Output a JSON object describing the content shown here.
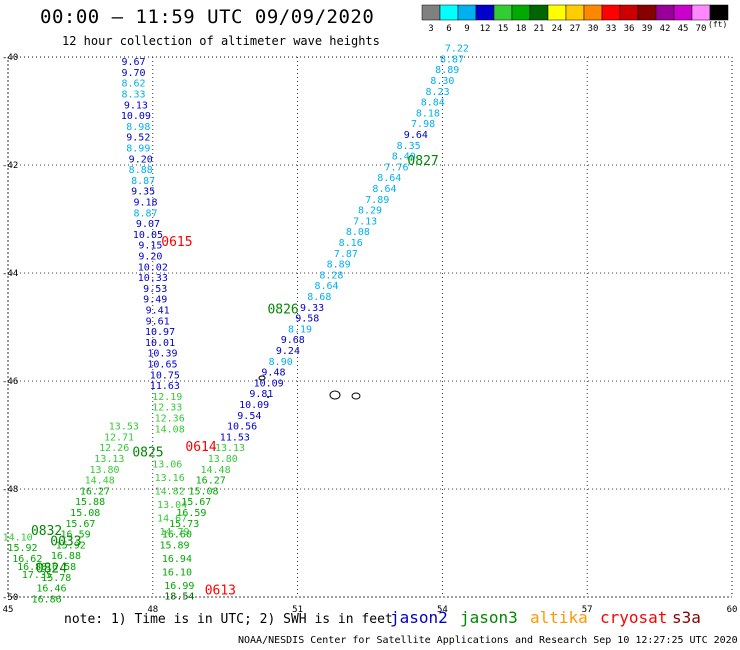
{
  "header": {
    "title": "00:00 – 11:59 UTC 09/09/2020",
    "subtitle": "12 hour collection of altimeter wave heights",
    "units": "(ft)"
  },
  "colorbar": [
    {
      "label": "3",
      "color": "#808080"
    },
    {
      "label": "6",
      "color": "#00ffff"
    },
    {
      "label": "9",
      "color": "#00b0f0"
    },
    {
      "label": "12",
      "color": "#0000cc"
    },
    {
      "label": "15",
      "color": "#33cc33"
    },
    {
      "label": "18",
      "color": "#00aa00"
    },
    {
      "label": "21",
      "color": "#006600"
    },
    {
      "label": "24",
      "color": "#ffff00"
    },
    {
      "label": "27",
      "color": "#ffcc00"
    },
    {
      "label": "30",
      "color": "#ff8800"
    },
    {
      "label": "33",
      "color": "#ff0000"
    },
    {
      "label": "36",
      "color": "#cc0000"
    },
    {
      "label": "39",
      "color": "#880000"
    },
    {
      "label": "42",
      "color": "#990099"
    },
    {
      "label": "45",
      "color": "#cc00cc"
    },
    {
      "label": "70",
      "color": "#ff88ff"
    },
    {
      "label": "",
      "color": "#000000"
    }
  ],
  "footer": {
    "note": "note: 1) Time is in UTC; 2) SWH is in feet",
    "credit": "NOAA/NESDIS Center for Satellite Applications and Research    Sep 10 12:27:25 UTC 2020",
    "legend": [
      {
        "label": "jason2",
        "color": "#0000cc"
      },
      {
        "label": "jason3",
        "color": "#008800"
      },
      {
        "label": "altika",
        "color": "#ff9900"
      },
      {
        "label": "cryosat",
        "color": "#ff0000"
      },
      {
        "label": "s3a",
        "color": "#880000"
      }
    ]
  },
  "chart_data": {
    "type": "scatter",
    "xlabel": "",
    "ylabel": "",
    "xlim": [
      45,
      60
    ],
    "ylim": [
      -50,
      -40
    ],
    "x_ticks": [
      "45",
      "48",
      "51",
      "54",
      "57",
      "60"
    ],
    "y_ticks": [
      "-40",
      "-42",
      "-44",
      "-46",
      "-48",
      "-50"
    ],
    "grid": true,
    "track_labels": [
      {
        "text": "0615",
        "x": 48.5,
        "y": -43.5,
        "color": "#ff0000"
      },
      {
        "text": "0614",
        "x": 49.0,
        "y": -47.3,
        "color": "#ff0000"
      },
      {
        "text": "0613",
        "x": 49.4,
        "y": -49.95,
        "color": "#ff0000"
      },
      {
        "text": "0827",
        "x": 53.6,
        "y": -42.0,
        "color": "#008800"
      },
      {
        "text": "0826",
        "x": 50.7,
        "y": -44.75,
        "color": "#008800"
      },
      {
        "text": "0825",
        "x": 47.9,
        "y": -47.4,
        "color": "#008800"
      },
      {
        "text": "0832",
        "x": 45.8,
        "y": -48.85,
        "color": "#008800"
      },
      {
        "text": "0033",
        "x": 46.2,
        "y": -49.05,
        "color": "#008800"
      },
      {
        "text": "0824",
        "x": 45.9,
        "y": -49.55,
        "color": "#008800"
      }
    ],
    "series": [
      {
        "satellite": "track 0615",
        "x": [
          47.6,
          47.6,
          47.6,
          47.6,
          47.65,
          47.65,
          47.7,
          47.7,
          47.7,
          47.75,
          47.75,
          47.8,
          47.8,
          47.85,
          47.85,
          47.9,
          47.9,
          47.95,
          47.95,
          48.0,
          48.0,
          48.05,
          48.05,
          48.1,
          48.1,
          48.15,
          48.15,
          48.2,
          48.2,
          48.25,
          48.25,
          48.3,
          48.3,
          48.35,
          48.35
        ],
        "y": [
          -40.15,
          -40.35,
          -40.55,
          -40.75,
          -40.95,
          -41.15,
          -41.35,
          -41.55,
          -41.75,
          -41.95,
          -42.15,
          -42.35,
          -42.55,
          -42.75,
          -42.95,
          -43.15,
          -43.35,
          -43.55,
          -43.75,
          -43.95,
          -44.15,
          -44.35,
          -44.55,
          -44.75,
          -44.95,
          -45.15,
          -45.35,
          -45.55,
          -45.75,
          -45.95,
          -46.15,
          -46.35,
          -46.55,
          -46.75,
          -46.95
        ],
        "values": [
          "9.67",
          "9.70",
          "8.62",
          "8.33",
          "9.13",
          "10.09",
          "8.98",
          "9.52",
          "8.99",
          "9.20",
          "8.88",
          "8.87",
          "9.35",
          "9.18",
          "8.87",
          "9.07",
          "10.05",
          "9.15",
          "9.20",
          "10.02",
          "10.33",
          "9.53",
          "9.49",
          "9.41",
          "9.61",
          "10.97",
          "10.01",
          "10.39",
          "10.65",
          "10.75",
          "11.63",
          "12.19",
          "12.33",
          "12.36",
          "14.08"
        ]
      },
      {
        "satellite": "track 0827",
        "x": [
          54.3,
          54.2,
          54.1,
          54.0,
          53.9,
          53.8,
          53.7,
          53.6,
          53.45,
          53.3,
          53.2,
          53.05,
          52.9,
          52.8,
          52.65,
          52.5,
          52.4,
          52.25,
          52.1,
          52.0,
          51.85,
          51.7,
          51.6,
          51.45,
          51.3,
          51.2,
          51.05,
          50.9,
          50.8,
          50.65,
          50.5,
          50.4,
          50.25,
          50.1,
          50.0,
          49.85,
          49.7,
          49.6,
          49.45,
          49.3,
          49.2,
          49.05,
          48.9,
          48.8,
          48.65,
          48.5
        ],
        "y": [
          -39.9,
          -40.1,
          -40.3,
          -40.5,
          -40.7,
          -40.9,
          -41.1,
          -41.3,
          -41.5,
          -41.7,
          -41.9,
          -42.1,
          -42.3,
          -42.5,
          -42.7,
          -42.9,
          -43.1,
          -43.3,
          -43.5,
          -43.7,
          -43.9,
          -44.1,
          -44.3,
          -44.5,
          -44.7,
          -44.9,
          -45.1,
          -45.3,
          -45.5,
          -45.7,
          -45.9,
          -46.1,
          -46.3,
          -46.5,
          -46.7,
          -46.9,
          -47.1,
          -47.3,
          -47.5,
          -47.7,
          -47.9,
          -48.1,
          -48.3,
          -48.5,
          -48.7,
          -48.9
        ],
        "values": [
          "7.22",
          "8.87",
          "8.89",
          "8.30",
          "8.23",
          "8.84",
          "8.18",
          "7.98",
          "9.64",
          "8.35",
          "8.40",
          "7.76",
          "8.64",
          "8.64",
          "7.89",
          "8.29",
          "7.13",
          "8.08",
          "8.16",
          "7.87",
          "8.89",
          "8.28",
          "8.64",
          "8.68",
          "9.33",
          "9.58",
          "8.19",
          "9.68",
          "9.24",
          "8.90",
          "9.48",
          "10.09",
          "9.81",
          "10.09",
          "9.54",
          "10.56",
          "11.53",
          "13.13",
          "13.80",
          "14.48",
          "16.27",
          "15.08",
          "15.67",
          "16.59",
          "15.73",
          "16.60"
        ]
      },
      {
        "satellite": "track 0614",
        "x": [
          47.4,
          47.3,
          47.2,
          47.1,
          47.0,
          46.9,
          46.8,
          46.7,
          46.6,
          46.5,
          46.4,
          46.3,
          46.2,
          46.1,
          46.0,
          45.9,
          45.8
        ],
        "y": [
          -46.9,
          -47.1,
          -47.3,
          -47.5,
          -47.7,
          -47.9,
          -48.1,
          -48.3,
          -48.5,
          -48.7,
          -48.9,
          -49.1,
          -49.3,
          -49.5,
          -49.7,
          -49.9,
          -50.1
        ],
        "values": [
          "13.53",
          "12.71",
          "12.26",
          "13.13",
          "13.80",
          "14.48",
          "16.27",
          "15.88",
          "15.08",
          "15.67",
          "16.59",
          "15.92",
          "16.88",
          "16.58",
          "15.78",
          "16.46",
          "16.86"
        ]
      },
      {
        "satellite": "track 0613",
        "x": [
          48.3,
          48.35,
          48.35,
          48.4,
          48.4,
          48.45,
          48.45,
          48.5,
          48.5,
          48.55
        ],
        "y": [
          -47.6,
          -47.85,
          -48.1,
          -48.35,
          -48.6,
          -48.85,
          -49.1,
          -49.35,
          -49.6,
          -49.85
        ],
        "values": [
          "13.06",
          "13.16",
          "14.82",
          "13.04",
          "14.67",
          "14.79",
          "15.89",
          "16.94",
          "16.10",
          "16.99"
        ]
      },
      {
        "satellite": "track 0824",
        "x": [
          45.2,
          45.3,
          45.4,
          45.5,
          45.6,
          48.55
        ],
        "y": [
          -48.95,
          -49.15,
          -49.35,
          -49.5,
          -49.65,
          -50.05
        ],
        "values": [
          "14.10",
          "15.92",
          "16.62",
          "16.88",
          "17.35",
          "18.54"
        ]
      }
    ]
  }
}
